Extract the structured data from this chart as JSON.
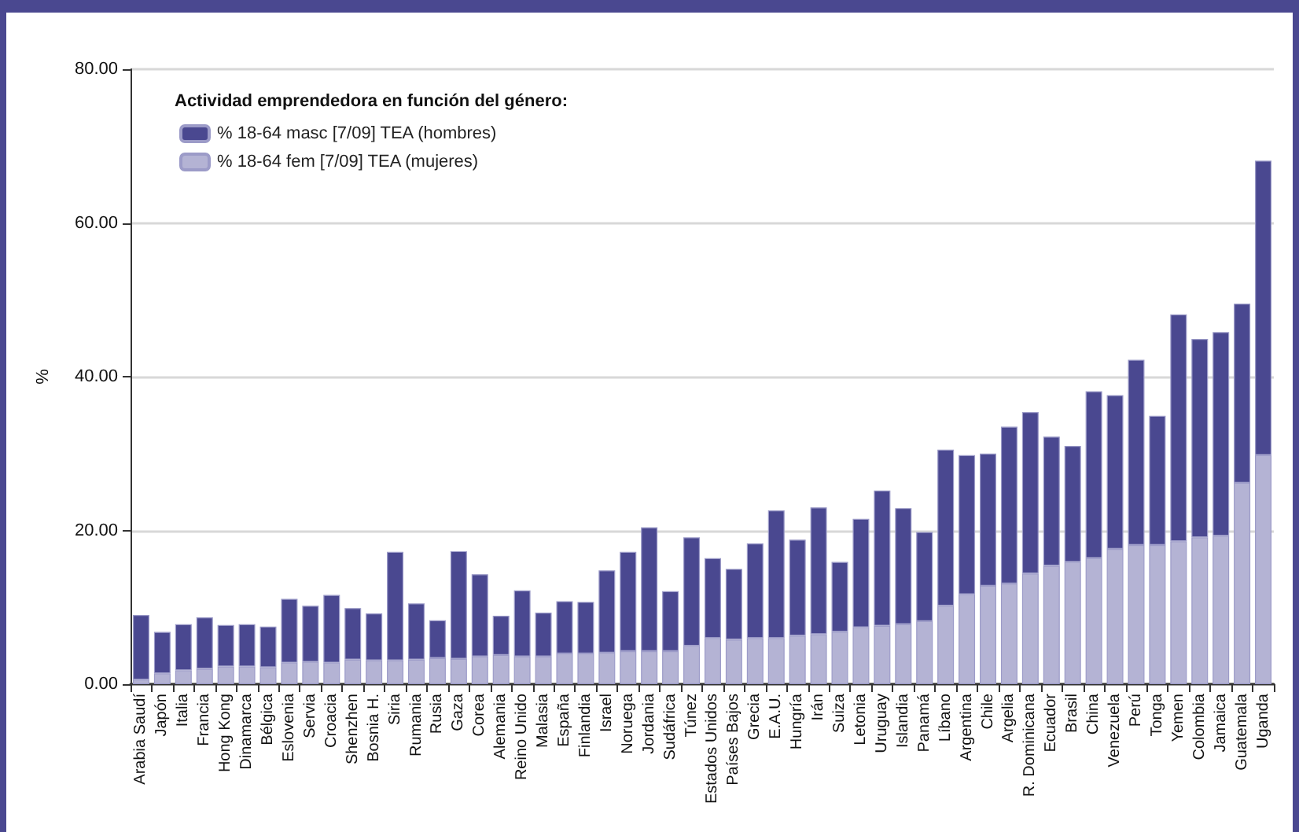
{
  "chart_data": {
    "type": "bar",
    "ylabel": "%",
    "legend_title": "Actividad emprendedora en función del género:",
    "categories": [
      "Arabia Saudí",
      "Japón",
      "Italia",
      "Francia",
      "Hong Kong",
      "Dinamarca",
      "Bélgica",
      "Eslovenia",
      "Servia",
      "Croacia",
      "Shenzhen",
      "Bosnia H.",
      "Siria",
      "Rumania",
      "Rusia",
      "Gaza",
      "Corea",
      "Alemania",
      "Reino Unido",
      "Malasia",
      "España",
      "Finlandia",
      "Israel",
      "Noruega",
      "Jordania",
      "Sudáfrica",
      "Túnez",
      "Estados Unidos",
      "Países Bajos",
      "Grecia",
      "E.A.U.",
      "Hungría",
      "Irán",
      "Suiza",
      "Letonia",
      "Uruguay",
      "Islandia",
      "Panamá",
      "Líbano",
      "Argentina",
      "Chile",
      "Argelia",
      "R. Dominicana",
      "Ecuador",
      "Brasil",
      "China",
      "Venezuela",
      "Perú",
      "Tonga",
      "Yemen",
      "Colombia",
      "Jamaica",
      "Guatemala",
      "Uganda"
    ],
    "stacked": true,
    "series": [
      {
        "name": "% 18-64 fem [7/09] TEA (mujeres)",
        "color": "#b4b3d4",
        "values": [
          0.6,
          1.4,
          1.8,
          2.0,
          2.3,
          2.3,
          2.2,
          2.8,
          2.9,
          2.8,
          3.2,
          3.1,
          3.1,
          3.2,
          3.4,
          3.3,
          3.6,
          3.8,
          3.6,
          3.6,
          4.0,
          4.0,
          4.1,
          4.3,
          4.3,
          4.3,
          5.0,
          6.0,
          5.8,
          6.0,
          6.0,
          6.3,
          6.5,
          6.8,
          7.4,
          7.6,
          7.8,
          8.2,
          10.2,
          11.7,
          12.8,
          13.1,
          14.4,
          15.4,
          15.9,
          16.4,
          17.6,
          18.1,
          18.1,
          18.6,
          19.1,
          19.3,
          26.2,
          29.8
        ]
      },
      {
        "name": "% 18-64 masc [7/09] TEA (hombres)",
        "color": "#4a4890",
        "values": [
          8.4,
          5.4,
          6.0,
          6.7,
          5.4,
          5.5,
          5.3,
          8.3,
          7.3,
          8.8,
          6.7,
          6.1,
          14.1,
          7.3,
          4.9,
          14.0,
          10.7,
          5.1,
          8.6,
          5.7,
          6.8,
          6.7,
          10.7,
          12.9,
          16.1,
          7.8,
          14.1,
          10.4,
          9.2,
          12.3,
          16.6,
          12.5,
          16.5,
          9.1,
          14.1,
          17.6,
          15.1,
          11.6,
          20.3,
          18.1,
          17.2,
          20.4,
          21.0,
          16.8,
          15.1,
          21.7,
          20.0,
          24.1,
          16.8,
          29.5,
          25.8,
          26.5,
          23.3,
          38.3
        ]
      }
    ],
    "ylim": [
      0,
      80
    ],
    "yticks": [
      {
        "value": 0,
        "label": "0.00"
      },
      {
        "value": 20,
        "label": "20.00"
      },
      {
        "value": 40,
        "label": "40.00"
      },
      {
        "value": 60,
        "label": "60.00"
      },
      {
        "value": 80,
        "label": "80.00"
      }
    ],
    "grid": "y",
    "legend": "top left"
  }
}
